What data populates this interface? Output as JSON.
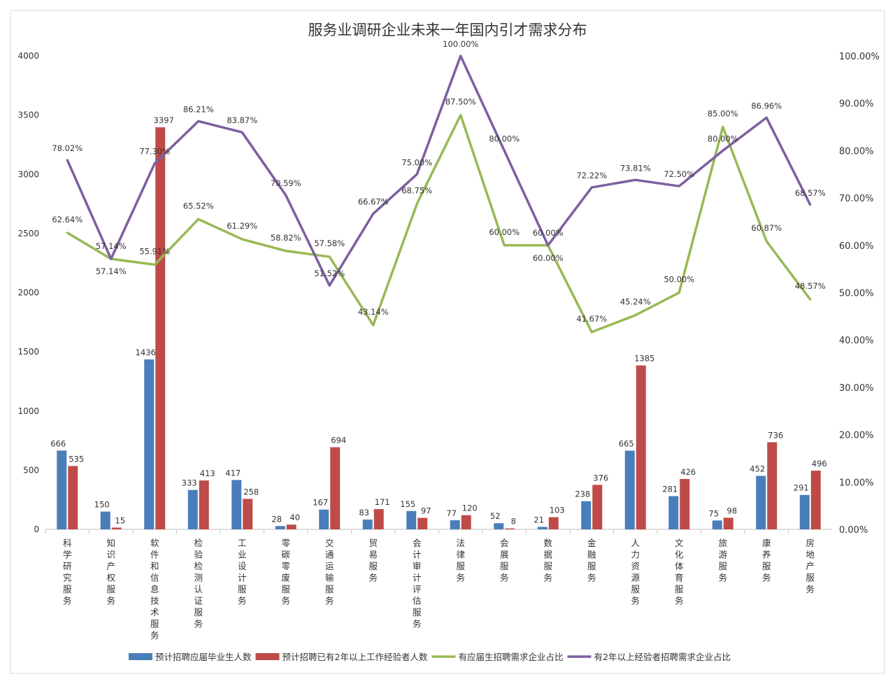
{
  "chart_data": {
    "type": "bar+line",
    "title": "服务业调研企业未来一年国内引才需求分布",
    "categories": [
      "科学研究服务",
      "知识产权服务",
      "软件和信息技术服务",
      "检验检测认证服务",
      "工业设计服务",
      "零碳零废服务",
      "交通运输服务",
      "贸易服务",
      "会计审计评估服务",
      "法律服务",
      "会展服务",
      "数据服务",
      "金融服务",
      "人力资源服务",
      "文化体育服务",
      "旅游服务",
      "康养服务",
      "房地产服务"
    ],
    "left_axis": {
      "ylim": [
        0,
        4000
      ],
      "ticks": [
        "0",
        "500",
        "1000",
        "1500",
        "2000",
        "2500",
        "3000",
        "3500",
        "4000"
      ]
    },
    "right_axis": {
      "ylim": [
        0,
        100
      ],
      "ticks": [
        "0.00%",
        "10.00%",
        "20.00%",
        "30.00%",
        "40.00%",
        "50.00%",
        "60.00%",
        "70.00%",
        "80.00%",
        "90.00%",
        "100.00%"
      ]
    },
    "series": [
      {
        "name": "预计招聘应届毕业生人数",
        "type": "bar",
        "axis": "left",
        "color": "#4a7ebb",
        "values": [
          666,
          150,
          1436,
          333,
          417,
          28,
          167,
          83,
          155,
          77,
          52,
          21,
          238,
          665,
          281,
          75,
          452,
          291
        ]
      },
      {
        "name": "预计招聘已有2年以上工作经验者人数",
        "type": "bar",
        "axis": "left",
        "color": "#be4b48",
        "values": [
          535,
          15,
          3397,
          413,
          258,
          40,
          694,
          171,
          97,
          120,
          8,
          103,
          376,
          1385,
          426,
          98,
          736,
          496
        ]
      },
      {
        "name": "有应届生招聘需求企业占比",
        "type": "line",
        "axis": "right",
        "color": "#98b954",
        "values": [
          62.64,
          57.14,
          55.91,
          65.52,
          61.29,
          58.82,
          57.58,
          43.14,
          68.75,
          87.5,
          60.0,
          60.0,
          41.67,
          45.24,
          50.0,
          85.0,
          60.87,
          48.57
        ]
      },
      {
        "name": "有2年以上经验者招聘需求企业占比",
        "type": "line",
        "axis": "right",
        "color": "#7d5fa0",
        "values": [
          78.02,
          57.14,
          77.3,
          86.21,
          83.87,
          70.59,
          51.52,
          66.67,
          75.0,
          100.0,
          80.0,
          60.0,
          72.22,
          73.81,
          72.5,
          80.0,
          86.96,
          68.57
        ]
      }
    ],
    "legend_position": "bottom",
    "grid": false
  }
}
